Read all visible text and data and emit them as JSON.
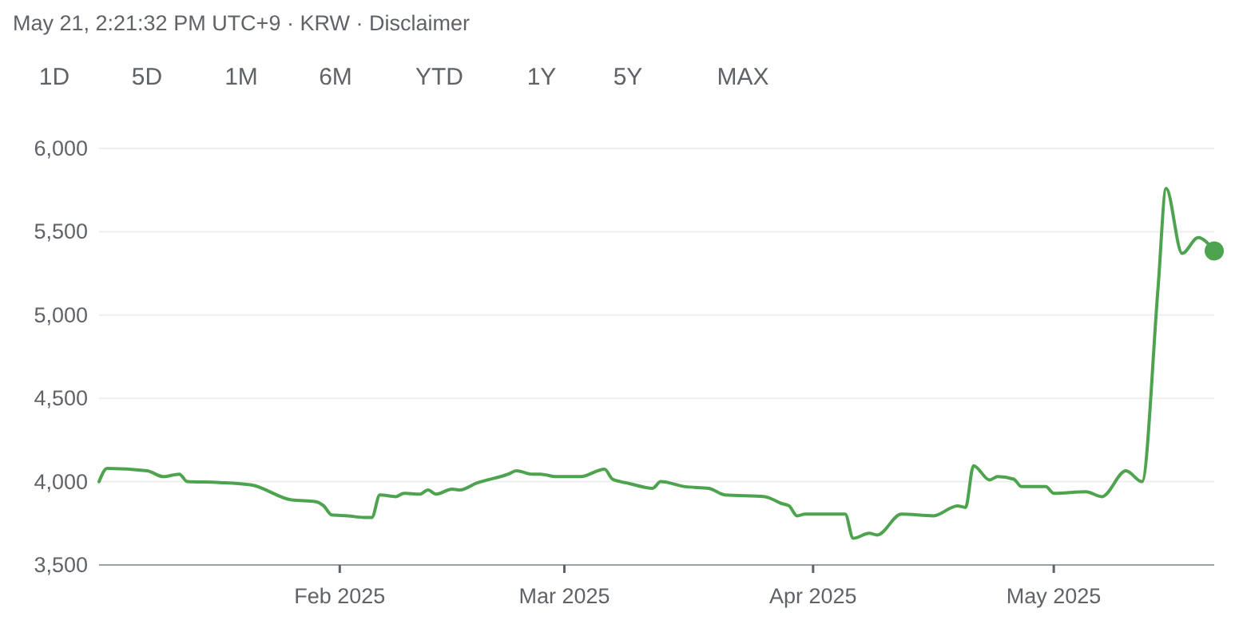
{
  "chart_data": {
    "type": "line",
    "subtitle": "May 21, 2:21:32 PM UTC+9 · KRW · Disclaimer",
    "annotations": [
      "1D",
      "5D",
      "1M",
      "6M",
      "YTD",
      "1Y",
      "5Y",
      "MAX"
    ],
    "xlim": [
      "2025-01-02",
      "2025-05-21"
    ],
    "xticks": [
      {
        "value": "2025-02-01",
        "label": "Feb 2025"
      },
      {
        "value": "2025-03-01",
        "label": "Mar 2025"
      },
      {
        "value": "2025-04-01",
        "label": "Apr 2025"
      },
      {
        "value": "2025-05-01",
        "label": "May 2025"
      }
    ],
    "ylim": [
      3500,
      6000
    ],
    "yticks": [
      {
        "value": 3500,
        "label": "3,500"
      },
      {
        "value": 4000,
        "label": "4,000"
      },
      {
        "value": 4500,
        "label": "4,500"
      },
      {
        "value": 5000,
        "label": "5,000"
      },
      {
        "value": 5500,
        "label": "5,500"
      },
      {
        "value": 6000,
        "label": "6,000"
      }
    ],
    "grid": "y",
    "marker": "none",
    "line_style": "solid",
    "series": [
      {
        "color": "#4ea44e",
        "x": [
          "2025-01-02",
          "2025-01-03",
          "2025-01-08",
          "2025-01-10",
          "2025-01-12",
          "2025-01-13",
          "2025-01-17",
          "2025-01-21",
          "2025-01-26",
          "2025-01-29",
          "2025-01-30",
          "2025-01-31",
          "2025-02-02",
          "2025-02-04",
          "2025-02-05",
          "2025-02-06",
          "2025-02-08",
          "2025-02-09",
          "2025-02-11",
          "2025-02-12",
          "2025-02-13",
          "2025-02-15",
          "2025-02-16",
          "2025-02-18",
          "2025-02-22",
          "2025-02-23",
          "2025-02-25",
          "2025-02-26",
          "2025-02-28",
          "2025-03-03",
          "2025-03-06",
          "2025-03-07",
          "2025-03-08",
          "2025-03-09",
          "2025-03-12",
          "2025-03-13",
          "2025-03-16",
          "2025-03-19",
          "2025-03-21",
          "2025-03-26",
          "2025-03-28",
          "2025-03-29",
          "2025-03-30",
          "2025-03-31",
          "2025-04-05",
          "2025-04-06",
          "2025-04-08",
          "2025-04-09",
          "2025-04-12",
          "2025-04-16",
          "2025-04-19",
          "2025-04-20",
          "2025-04-21",
          "2025-04-23",
          "2025-04-24",
          "2025-04-26",
          "2025-04-27",
          "2025-04-30",
          "2025-05-01",
          "2025-05-05",
          "2025-05-07",
          "2025-05-10",
          "2025-05-12",
          "2025-05-14",
          "2025-05-15",
          "2025-05-17",
          "2025-05-19",
          "2025-05-21"
        ],
        "values": [
          4000,
          4080,
          4065,
          4030,
          4045,
          4000,
          3995,
          3980,
          3890,
          3880,
          3855,
          3800,
          3795,
          3785,
          3785,
          3920,
          3910,
          3930,
          3925,
          3950,
          3925,
          3955,
          3950,
          3990,
          4045,
          4065,
          4045,
          4045,
          4030,
          4030,
          4075,
          4015,
          4000,
          3990,
          3960,
          4000,
          3970,
          3960,
          3920,
          3910,
          3870,
          3855,
          3795,
          3805,
          3805,
          3660,
          3690,
          3680,
          3805,
          3795,
          3855,
          3845,
          4095,
          4010,
          4030,
          4015,
          3970,
          3970,
          3930,
          3940,
          3910,
          4065,
          4000,
          5165,
          5760,
          5370,
          5465,
          5385
        ]
      },
      {
        "type": "scatter",
        "color": "#4ea44e",
        "marker": "circle",
        "x": [
          "2025-05-21"
        ],
        "values": [
          5385
        ]
      }
    ]
  }
}
